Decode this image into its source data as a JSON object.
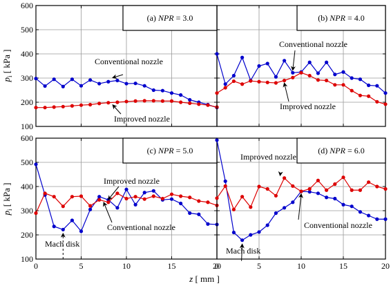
{
  "chart_data": [
    {
      "type": "line",
      "panel_label": "(a) ",
      "panel_label_italic": "NPR",
      "panel_label_value": " = 3.0",
      "xlim": [
        0,
        20
      ],
      "ylim": [
        100,
        600
      ],
      "series": [
        {
          "name": "Conventional nozzle",
          "color": "#0000cc",
          "x": [
            0,
            1,
            2,
            3,
            4,
            5,
            6,
            7,
            8,
            9,
            10,
            11,
            12,
            13,
            14,
            15,
            16,
            17,
            18,
            19,
            20
          ],
          "y": [
            298,
            267,
            295,
            265,
            295,
            268,
            292,
            277,
            285,
            290,
            277,
            278,
            268,
            250,
            248,
            238,
            230,
            210,
            200,
            190,
            178
          ]
        },
        {
          "name": "Improved nozzle",
          "color": "#dd0000",
          "x": [
            0,
            1,
            2,
            3,
            4,
            5,
            6,
            7,
            8,
            9,
            10,
            11,
            12,
            13,
            14,
            15,
            16,
            17,
            18,
            19,
            20
          ],
          "y": [
            178,
            178,
            180,
            182,
            185,
            188,
            190,
            195,
            198,
            200,
            203,
            205,
            206,
            206,
            205,
            205,
            200,
            196,
            192,
            188,
            180
          ]
        }
      ],
      "annotations": [
        {
          "text": "Conventional nozzle",
          "series": 0,
          "at_x": 8.5
        },
        {
          "text": "Improved nozzle",
          "series": 1,
          "at_x": 8.5
        }
      ]
    },
    {
      "type": "line",
      "panel_label": "(b) ",
      "panel_label_italic": "NPR",
      "panel_label_value": " = 4.0",
      "xlim": [
        0,
        20
      ],
      "ylim": [
        100,
        600
      ],
      "series": [
        {
          "name": "Conventional nozzle",
          "color": "#0000cc",
          "x": [
            0,
            1,
            2,
            3,
            4,
            5,
            6,
            7,
            8,
            9,
            10,
            11,
            12,
            13,
            14,
            15,
            16,
            17,
            18,
            19,
            20
          ],
          "y": [
            400,
            275,
            310,
            385,
            290,
            350,
            360,
            305,
            372,
            322,
            325,
            365,
            320,
            365,
            315,
            325,
            300,
            295,
            270,
            268,
            238
          ]
        },
        {
          "name": "Improved nozzle",
          "color": "#dd0000",
          "x": [
            0,
            1,
            2,
            3,
            4,
            5,
            6,
            7,
            8,
            9,
            10,
            11,
            12,
            13,
            14,
            15,
            16,
            17,
            18,
            19,
            20
          ],
          "y": [
            238,
            260,
            287,
            275,
            288,
            285,
            282,
            280,
            290,
            302,
            322,
            310,
            292,
            290,
            272,
            272,
            248,
            228,
            225,
            202,
            192
          ]
        }
      ],
      "annotations": [
        {
          "text": "Conventional nozzle",
          "series": 0,
          "at_x": 9
        },
        {
          "text": "Improved nozzle",
          "series": 1,
          "at_x": 8
        }
      ]
    },
    {
      "type": "line",
      "panel_label": "(c) ",
      "panel_label_italic": "NPR",
      "panel_label_value": " = 5.0",
      "xlim": [
        0,
        20
      ],
      "ylim": [
        100,
        600
      ],
      "series": [
        {
          "name": "Conventional nozzle",
          "color": "#0000cc",
          "x": [
            0,
            1,
            2,
            3,
            4,
            5,
            6,
            7,
            8,
            9,
            10,
            11,
            12,
            13,
            14,
            15,
            16,
            17,
            18,
            19,
            20
          ],
          "y": [
            492,
            365,
            235,
            222,
            260,
            215,
            305,
            358,
            345,
            312,
            388,
            325,
            375,
            382,
            345,
            348,
            330,
            290,
            285,
            245,
            243
          ]
        },
        {
          "name": "Improved nozzle",
          "color": "#dd0000",
          "x": [
            0,
            1,
            2,
            3,
            4,
            5,
            6,
            7,
            8,
            9,
            10,
            11,
            12,
            13,
            14,
            15,
            16,
            17,
            18,
            19,
            20
          ],
          "y": [
            290,
            372,
            358,
            318,
            358,
            360,
            320,
            345,
            335,
            372,
            350,
            358,
            348,
            360,
            350,
            368,
            360,
            355,
            340,
            335,
            322
          ]
        }
      ],
      "annotations": [
        {
          "text": "Improved nozzle",
          "series": 1,
          "at_x": 8
        },
        {
          "text": "Conventional nozzle",
          "series": 0,
          "at_x": 7.5
        },
        {
          "text": "Mach disk",
          "series": 0,
          "at_x": 3
        }
      ]
    },
    {
      "type": "line",
      "panel_label": "(d) ",
      "panel_label_italic": "NPR",
      "panel_label_value": " = 6.0",
      "xlim": [
        0,
        20
      ],
      "ylim": [
        100,
        600
      ],
      "series": [
        {
          "name": "Conventional nozzle",
          "color": "#0000cc",
          "x": [
            0,
            1,
            2,
            3,
            4,
            5,
            6,
            7,
            8,
            9,
            10,
            11,
            12,
            13,
            14,
            15,
            16,
            17,
            18,
            19,
            20
          ],
          "y": [
            592,
            422,
            210,
            178,
            200,
            212,
            240,
            290,
            312,
            335,
            380,
            378,
            372,
            355,
            350,
            325,
            318,
            295,
            280,
            265,
            265
          ]
        },
        {
          "name": "Improved nozzle",
          "color": "#dd0000",
          "x": [
            0,
            1,
            2,
            3,
            4,
            5,
            6,
            7,
            8,
            9,
            10,
            11,
            12,
            13,
            14,
            15,
            16,
            17,
            18,
            19,
            20
          ],
          "y": [
            352,
            402,
            305,
            358,
            315,
            400,
            390,
            362,
            435,
            402,
            380,
            390,
            425,
            385,
            410,
            438,
            385,
            385,
            418,
            400,
            390
          ]
        }
      ],
      "annotations": [
        {
          "text": "Improved nozzle",
          "series": 1,
          "at_x": 7.5
        },
        {
          "text": "Conventional nozzle",
          "series": 0,
          "at_x": 10
        },
        {
          "text": "Mach disk",
          "series": 0,
          "at_x": 3
        }
      ]
    }
  ],
  "axes": {
    "x_ticks": [
      "0",
      "5",
      "10",
      "15",
      "20"
    ],
    "y_ticks": [
      "100",
      "200",
      "300",
      "400",
      "500",
      "600"
    ],
    "xlabel_italic": "z",
    "xlabel_unit": " [ mm ]",
    "ylabel_italic": "p",
    "ylabel_sub": "i",
    "ylabel_unit": " [ kPa ]"
  }
}
